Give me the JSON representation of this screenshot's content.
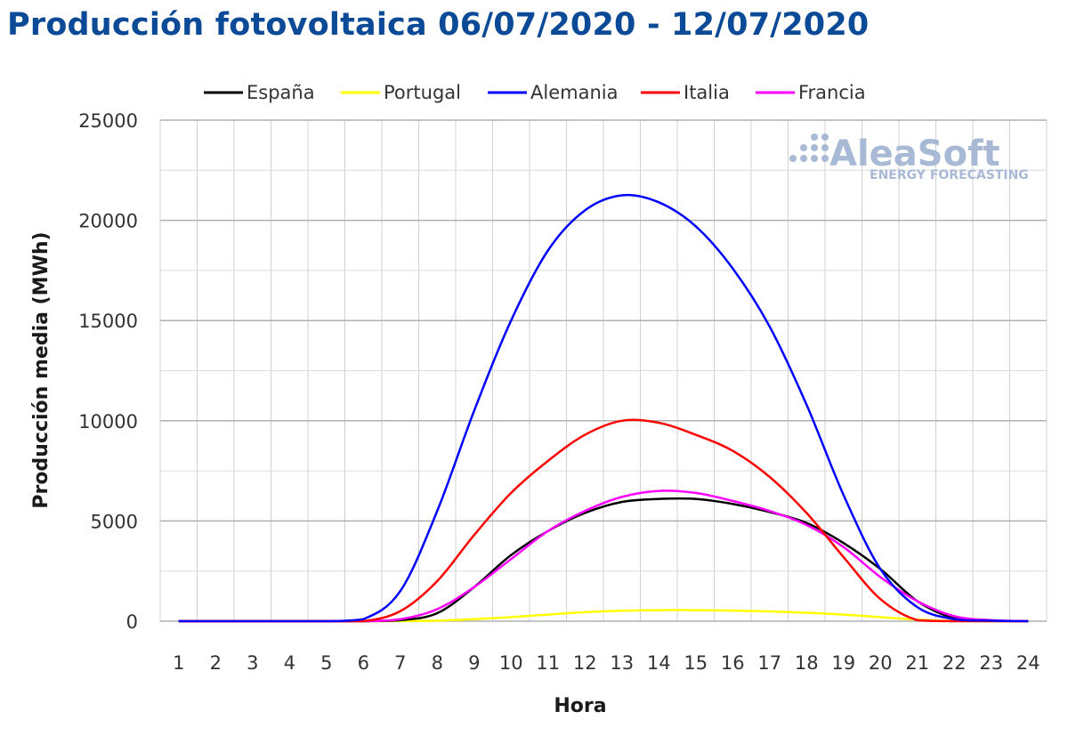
{
  "title": "Producción fotovoltaica 06/07/2020 - 12/07/2020",
  "logo": {
    "name": "AleaSoft",
    "tagline": "ENERGY FORECASTING"
  },
  "chart_data": {
    "type": "line",
    "xlabel": "Hora",
    "ylabel": "Producción media (MWh)",
    "ylim": [
      0,
      25000
    ],
    "yticks": [
      0,
      5000,
      10000,
      15000,
      20000,
      25000
    ],
    "x": [
      1,
      2,
      3,
      4,
      5,
      6,
      7,
      8,
      9,
      10,
      11,
      12,
      13,
      14,
      15,
      16,
      17,
      18,
      19,
      20,
      21,
      22,
      23,
      24
    ],
    "grid": true,
    "legend_position": "top",
    "series": [
      {
        "name": "España",
        "color": "#000000",
        "values": [
          0,
          0,
          0,
          0,
          0,
          0,
          50,
          400,
          1700,
          3300,
          4500,
          5400,
          5950,
          6100,
          6100,
          5850,
          5450,
          4900,
          3900,
          2600,
          1000,
          150,
          30,
          0
        ]
      },
      {
        "name": "Portugal",
        "color": "#ffff00",
        "values": [
          0,
          0,
          0,
          0,
          0,
          0,
          5,
          30,
          100,
          200,
          330,
          450,
          520,
          550,
          550,
          530,
          490,
          420,
          330,
          200,
          80,
          10,
          0,
          0
        ]
      },
      {
        "name": "Alemania",
        "color": "#0000ff",
        "values": [
          0,
          0,
          0,
          0,
          0,
          100,
          1500,
          5500,
          10500,
          15000,
          18500,
          20500,
          21250,
          20900,
          19700,
          17600,
          14700,
          10800,
          6300,
          2600,
          700,
          100,
          30,
          0
        ]
      },
      {
        "name": "Italia",
        "color": "#ff0000",
        "values": [
          0,
          0,
          0,
          0,
          0,
          0,
          500,
          2000,
          4300,
          6400,
          8000,
          9300,
          10000,
          9900,
          9300,
          8500,
          7200,
          5400,
          3200,
          1100,
          50,
          0,
          0,
          0
        ]
      },
      {
        "name": "Francia",
        "color": "#ff00ff",
        "values": [
          0,
          0,
          0,
          0,
          0,
          0,
          100,
          600,
          1700,
          3100,
          4500,
          5500,
          6200,
          6500,
          6400,
          6000,
          5500,
          4800,
          3700,
          2200,
          1000,
          250,
          50,
          0
        ]
      }
    ]
  }
}
